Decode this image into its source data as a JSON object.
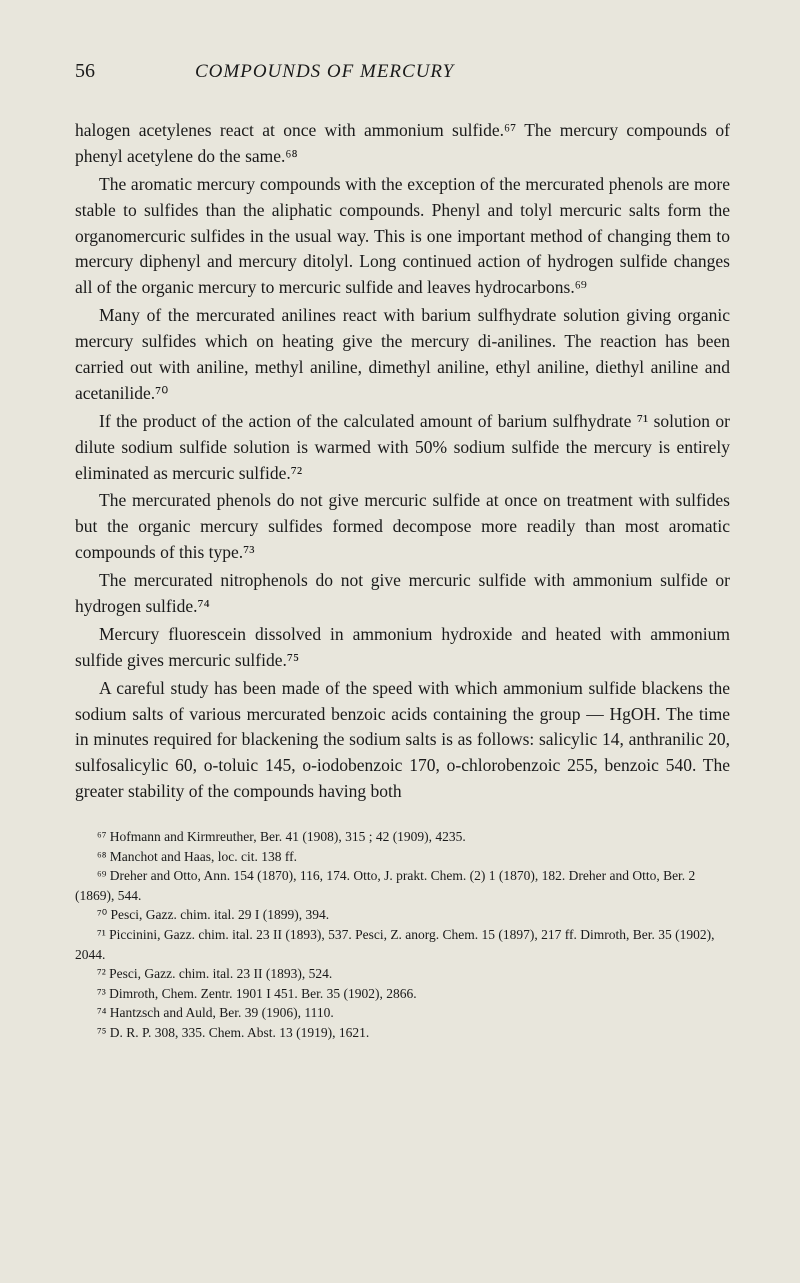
{
  "header": {
    "pageNumber": "56",
    "chapterTitle": "COMPOUNDS OF MERCURY"
  },
  "paragraphs": [
    "halogen acetylenes react at once with ammonium sulfide.⁶⁷ The mercury compounds of phenyl acetylene do the same.⁶⁸",
    "The aromatic mercury compounds with the exception of the mercurated phenols are more stable to sulfides than the aliphatic compounds. Phenyl and tolyl mercuric salts form the organomercuric sulfides in the usual way. This is one important method of changing them to mercury diphenyl and mercury ditolyl. Long continued action of hydrogen sulfide changes all of the organic mercury to mercuric sulfide and leaves hydrocarbons.⁶⁹",
    "Many of the mercurated anilines react with barium sulfhydrate solution giving organic mercury sulfides which on heating give the mercury di-anilines. The reaction has been carried out with aniline, methyl aniline, dimethyl aniline, ethyl aniline, diethyl aniline and acetanilide.⁷⁰",
    "If the product of the action of the calculated amount of barium sulfhydrate ⁷¹ solution or dilute sodium sulfide solution is warmed with 50% sodium sulfide the mercury is entirely eliminated as mercuric sulfide.⁷²",
    "The mercurated phenols do not give mercuric sulfide at once on treatment with sulfides but the organic mercury sulfides formed decompose more readily than most aromatic compounds of this type.⁷³",
    "The mercurated nitrophenols do not give mercuric sulfide with ammonium sulfide or hydrogen sulfide.⁷⁴",
    "Mercury fluorescein dissolved in ammonium hydroxide and heated with ammonium sulfide gives mercuric sulfide.⁷⁵",
    "A careful study has been made of the speed with which ammonium sulfide blackens the sodium salts of various mercurated benzoic acids containing the group — HgOH. The time in minutes required for blackening the sodium salts is as follows: salicylic 14, anthranilic 20, sulfosalicylic 60, o-toluic 145, o-iodobenzoic 170, o-chlorobenzoic 255, benzoic 540. The greater stability of the compounds having both"
  ],
  "footnotes": [
    "⁶⁷ Hofmann and Kirmreuther, Ber. 41 (1908), 315 ; 42 (1909), 4235.",
    "⁶⁸ Manchot and Haas, loc. cit. 138 ff.",
    "⁶⁹ Dreher and Otto, Ann. 154 (1870), 116, 174. Otto, J. prakt. Chem. (2) 1 (1870), 182. Dreher and Otto, Ber. 2 (1869), 544.",
    "⁷⁰ Pesci, Gazz. chim. ital. 29 I (1899), 394.",
    "⁷¹ Piccinini, Gazz. chim. ital. 23 II (1893), 537. Pesci, Z. anorg. Chem. 15 (1897), 217 ff. Dimroth, Ber. 35 (1902), 2044.",
    "⁷² Pesci, Gazz. chim. ital. 23 II (1893), 524.",
    "⁷³ Dimroth, Chem. Zentr. 1901 I 451. Ber. 35 (1902), 2866.",
    "⁷⁴ Hantzsch and Auld, Ber. 39 (1906), 1110.",
    "⁷⁵ D. R. P. 308, 335. Chem. Abst. 13 (1919), 1621."
  ]
}
